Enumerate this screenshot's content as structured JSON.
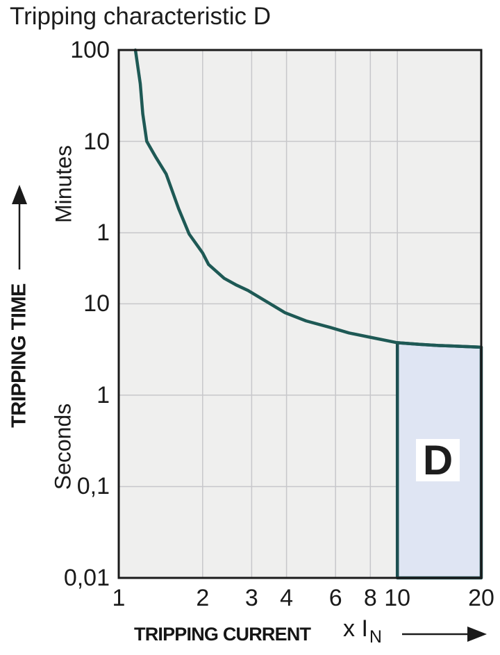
{
  "colors": {
    "curve": "#1e5955",
    "region_border": "#1c4f51",
    "region_fill": "#dfe5f3",
    "plot_bg": "#efefee",
    "grid": "#c7c7ca",
    "axis": "#1a1a1a",
    "text": "#1a1a1a"
  },
  "chart_data": {
    "type": "line",
    "title": "Tripping characteristic D",
    "xlabel": "TRIPPING CURRENT",
    "x_multiplier": "x I",
    "x_multiplier_sub": "N",
    "ylabel": "TRIPPING TIME",
    "y_units": {
      "upper": "Minutes",
      "lower": "Seconds"
    },
    "log_x": true,
    "log_y": true,
    "grid": true,
    "x_range": [
      1,
      20
    ],
    "y_range_seconds": [
      0.01,
      6000
    ],
    "x_ticks": [
      {
        "v": 1,
        "label": "1"
      },
      {
        "v": 2,
        "label": "2"
      },
      {
        "v": 3,
        "label": "3"
      },
      {
        "v": 4,
        "label": "4"
      },
      {
        "v": 6,
        "label": "6"
      },
      {
        "v": 8,
        "label": "8"
      },
      {
        "v": 10,
        "label": "10"
      },
      {
        "v": 20,
        "label": "20"
      }
    ],
    "y_ticks": [
      {
        "t": 6000,
        "label": "100",
        "unit": "minutes"
      },
      {
        "t": 600,
        "label": "10",
        "unit": "minutes"
      },
      {
        "t": 60,
        "label": "1",
        "unit": "minutes"
      },
      {
        "t": 10,
        "label": "10",
        "unit": "seconds"
      },
      {
        "t": 1,
        "label": "1",
        "unit": "seconds"
      },
      {
        "t": 0.1,
        "label": "0,1",
        "unit": "seconds"
      },
      {
        "t": 0.01,
        "label": "0,01",
        "unit": "seconds"
      }
    ],
    "x_gridlines": [
      2,
      3,
      4,
      6,
      8,
      10
    ],
    "y_gridlines": [
      600,
      60,
      10,
      1,
      0.1
    ],
    "series": [
      {
        "name": "tripping-curve",
        "points_x_times_In_vs_seconds": true,
        "points": [
          [
            1.148,
            6000
          ],
          [
            1.195,
            2560
          ],
          [
            1.22,
            1200
          ],
          [
            1.26,
            600
          ],
          [
            1.36,
            400
          ],
          [
            1.48,
            263
          ],
          [
            1.64,
            110
          ],
          [
            1.79,
            58
          ],
          [
            2.0,
            36
          ],
          [
            2.1,
            27
          ],
          [
            2.39,
            19
          ],
          [
            2.65,
            16
          ],
          [
            2.91,
            14
          ],
          [
            3.95,
            8.0
          ],
          [
            4.7,
            6.5
          ],
          [
            5.76,
            5.5
          ],
          [
            6.7,
            4.8
          ],
          [
            7.86,
            4.35
          ],
          [
            10,
            3.75
          ],
          [
            12,
            3.6
          ],
          [
            14,
            3.5
          ],
          [
            16,
            3.45
          ],
          [
            20,
            3.35
          ]
        ]
      }
    ],
    "region": {
      "label": "D",
      "x_from": 10,
      "x_to": 20,
      "t_bottom_seconds": 0.01,
      "t_top_at_x_from": 3.75,
      "t_top_at_x_to": 3.35
    }
  }
}
